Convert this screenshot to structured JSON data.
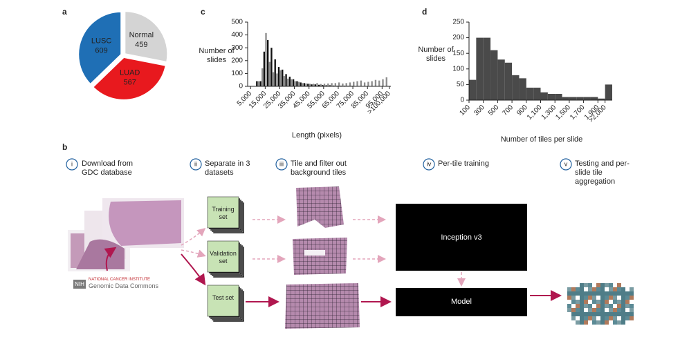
{
  "chart_data": [
    {
      "type": "pie",
      "label": "a",
      "categories": [
        "Normal",
        "LUAD",
        "LUSC"
      ],
      "values": [
        459,
        567,
        609
      ],
      "colors": [
        "#d4d4d4",
        "#e8191e",
        "#1f6fb5"
      ]
    },
    {
      "type": "bar",
      "label": "c",
      "xlabel": "Length (pixels)",
      "ylabel": "Number of slides",
      "x": [
        10000,
        12500,
        15000,
        17500,
        20000,
        22500,
        25000,
        27500,
        30000,
        32500,
        35000,
        37500,
        40000,
        42500,
        45000,
        47500,
        50000,
        52500,
        55000,
        57500,
        60000,
        62500,
        65000,
        67500,
        70000,
        72500,
        75000,
        77500,
        80000,
        82500,
        85000,
        87500,
        90000,
        92500,
        95000,
        97500
      ],
      "series": [
        {
          "color": "#111111",
          "values": [
            40,
            40,
            270,
            360,
            300,
            210,
            150,
            130,
            95,
            75,
            55,
            40,
            30,
            25,
            20,
            15,
            15,
            12,
            10,
            8,
            8,
            6,
            5,
            5,
            5,
            4,
            4,
            3,
            3,
            3,
            3,
            2,
            2,
            2,
            2,
            2
          ]
        },
        {
          "color": "#8c8c8c",
          "values": [
            40,
            140,
            415,
            190,
            110,
            100,
            125,
            80,
            60,
            55,
            40,
            35,
            25,
            22,
            20,
            20,
            25,
            18,
            20,
            22,
            25,
            25,
            30,
            22,
            25,
            30,
            35,
            40,
            45,
            30,
            35,
            40,
            50,
            45,
            55,
            70
          ]
        }
      ],
      "xlim": [
        3000,
        101000
      ],
      "ylim": [
        0,
        500
      ],
      "yticks": [
        0,
        100,
        200,
        300,
        400,
        500
      ],
      "xticks": [
        {
          "value": 5000,
          "label": "5,000"
        },
        {
          "value": 15000,
          "label": "15,000"
        },
        {
          "value": 25000,
          "label": "25,000"
        },
        {
          "value": 35000,
          "label": "35,000"
        },
        {
          "value": 45000,
          "label": "45,000"
        },
        {
          "value": 55000,
          "label": "55,000"
        },
        {
          "value": 65000,
          "label": "65,000"
        },
        {
          "value": 75000,
          "label": "75,000"
        },
        {
          "value": 85000,
          "label": "85,000"
        },
        {
          "value": 95000,
          "label": "95,000"
        },
        {
          "value": 100000,
          "label": ">100,000"
        }
      ]
    },
    {
      "type": "histogram",
      "label": "d",
      "xlabel": "Number of tiles per slide",
      "ylabel": "Number of slides",
      "color": "#4a4a4a",
      "bins": [
        100,
        200,
        300,
        400,
        500,
        600,
        700,
        800,
        900,
        1000,
        1100,
        1200,
        1300,
        1400,
        1500,
        1600,
        1700,
        1800,
        1900,
        2000,
        2100
      ],
      "counts": [
        65,
        200,
        200,
        160,
        130,
        120,
        80,
        70,
        40,
        40,
        25,
        20,
        20,
        10,
        10,
        10,
        10,
        10,
        5,
        50
      ],
      "xlim": [
        100,
        2100
      ],
      "ylim": [
        0,
        250
      ],
      "yticks": [
        0,
        50,
        100,
        150,
        200,
        250
      ],
      "xticks": [
        100,
        300,
        500,
        700,
        900,
        {
          "value": 1100,
          "label": "1,100"
        },
        {
          "value": 1300,
          "label": "1,300"
        },
        {
          "value": 1500,
          "label": "1,500"
        },
        {
          "value": 1700,
          "label": "1,700"
        },
        {
          "value": 1900,
          "label": "1,900"
        },
        {
          "value": 2000,
          "label": ">2,000"
        }
      ]
    }
  ],
  "diagram": {
    "label": "b",
    "steps": [
      {
        "number": "i",
        "text": "Download from GDC database"
      },
      {
        "number": "ii",
        "text": "Separate in 3 datasets"
      },
      {
        "number": "iii",
        "text": "Tile and filter out background tiles"
      },
      {
        "number": "iv",
        "text": "Per-tile training"
      },
      {
        "number": "v",
        "text": "Testing and per-slide tile aggregation"
      }
    ],
    "datasets": [
      "Training set",
      "Validation set",
      "Test set"
    ],
    "models": [
      "Inception v3",
      "Model"
    ],
    "source": {
      "logo": "NIH",
      "org": "NATIONAL CANCER INSTITUTE",
      "name": "Genomic Data Commons"
    }
  }
}
